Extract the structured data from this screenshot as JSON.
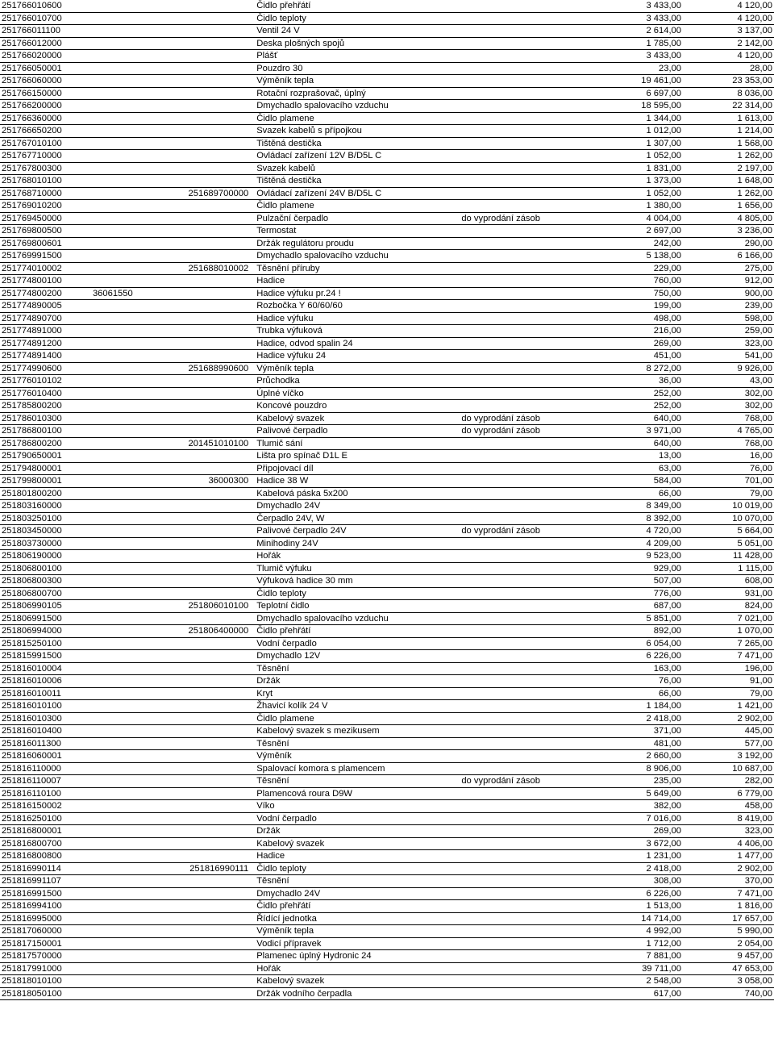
{
  "rows": [
    {
      "c1": "251766010600",
      "c2": "",
      "c3": "",
      "c4": "Čidlo přehřátí",
      "c5": "",
      "c6": "3 433,00",
      "c7": "4 120,00"
    },
    {
      "c1": "251766010700",
      "c2": "",
      "c3": "",
      "c4": "Čidlo teploty",
      "c5": "",
      "c6": "3 433,00",
      "c7": "4 120,00"
    },
    {
      "c1": "251766011100",
      "c2": "",
      "c3": "",
      "c4": "Ventil 24 V",
      "c5": "",
      "c6": "2 614,00",
      "c7": "3 137,00"
    },
    {
      "c1": "251766012000",
      "c2": "",
      "c3": "",
      "c4": "Deska plošných spojů",
      "c5": "",
      "c6": "1 785,00",
      "c7": "2 142,00"
    },
    {
      "c1": "251766020000",
      "c2": "",
      "c3": "",
      "c4": "Plášť",
      "c5": "",
      "c6": "3 433,00",
      "c7": "4 120,00"
    },
    {
      "c1": "251766050001",
      "c2": "",
      "c3": "",
      "c4": "Pouzdro 30",
      "c5": "",
      "c6": "23,00",
      "c7": "28,00"
    },
    {
      "c1": "251766060000",
      "c2": "",
      "c3": "",
      "c4": "Výměník tepla",
      "c5": "",
      "c6": "19 461,00",
      "c7": "23 353,00"
    },
    {
      "c1": "251766150000",
      "c2": "",
      "c3": "",
      "c4": "Rotační rozprašovač, úplný",
      "c5": "",
      "c6": "6 697,00",
      "c7": "8 036,00"
    },
    {
      "c1": "251766200000",
      "c2": "",
      "c3": "",
      "c4": "Dmychadlo spalovacího vzduchu",
      "c5": "",
      "c6": "18 595,00",
      "c7": "22 314,00"
    },
    {
      "c1": "251766360000",
      "c2": "",
      "c3": "",
      "c4": "Čidlo plamene",
      "c5": "",
      "c6": "1 344,00",
      "c7": "1 613,00"
    },
    {
      "c1": "251766650200",
      "c2": "",
      "c3": "",
      "c4": "Svazek kabelů s přípojkou",
      "c5": "",
      "c6": "1 012,00",
      "c7": "1 214,00"
    },
    {
      "c1": "251767010100",
      "c2": "",
      "c3": "",
      "c4": "Tištěná destička",
      "c5": "",
      "c6": "1 307,00",
      "c7": "1 568,00"
    },
    {
      "c1": "251767710000",
      "c2": "",
      "c3": "",
      "c4": "Ovládací zařízení 12V B/D5L C",
      "c5": "",
      "c6": "1 052,00",
      "c7": "1 262,00"
    },
    {
      "c1": "251767800300",
      "c2": "",
      "c3": "",
      "c4": "Svazek kabelů",
      "c5": "",
      "c6": "1 831,00",
      "c7": "2 197,00"
    },
    {
      "c1": "251768010100",
      "c2": "",
      "c3": "",
      "c4": "Tištěná destička",
      "c5": "",
      "c6": "1 373,00",
      "c7": "1 648,00"
    },
    {
      "c1": "251768710000",
      "c2": "",
      "c3": "251689700000",
      "c4": "Ovládací zařízení 24V B/D5L C",
      "c5": "",
      "c6": "1 052,00",
      "c7": "1 262,00"
    },
    {
      "c1": "251769010200",
      "c2": "",
      "c3": "",
      "c4": "Čidlo plamene",
      "c5": "",
      "c6": "1 380,00",
      "c7": "1 656,00"
    },
    {
      "c1": "251769450000",
      "c2": "",
      "c3": "",
      "c4": "Pulzační čerpadlo",
      "c5": "do vyprodání zásob",
      "c6": "4 004,00",
      "c7": "4 805,00"
    },
    {
      "c1": "251769800500",
      "c2": "",
      "c3": "",
      "c4": "Termostat",
      "c5": "",
      "c6": "2 697,00",
      "c7": "3 236,00"
    },
    {
      "c1": "251769800601",
      "c2": "",
      "c3": "",
      "c4": "Držák regulátoru proudu",
      "c5": "",
      "c6": "242,00",
      "c7": "290,00"
    },
    {
      "c1": "251769991500",
      "c2": "",
      "c3": "",
      "c4": "Dmychadlo spalovacího vzduchu",
      "c5": "",
      "c6": "5 138,00",
      "c7": "6 166,00"
    },
    {
      "c1": "251774010002",
      "c2": "",
      "c3": "251688010002",
      "c4": "Těsnění příruby",
      "c5": "",
      "c6": "229,00",
      "c7": "275,00"
    },
    {
      "c1": "251774800100",
      "c2": "",
      "c3": "",
      "c4": "Hadice",
      "c5": "",
      "c6": "760,00",
      "c7": "912,00"
    },
    {
      "c1": "251774800200",
      "c2": "36061550",
      "c3": "",
      "c4": "Hadice výfuku pr.24      !",
      "c5": "",
      "c6": "750,00",
      "c7": "900,00"
    },
    {
      "c1": "251774890005",
      "c2": "",
      "c3": "",
      "c4": "Rozbočka Y 60/60/60",
      "c5": "",
      "c6": "199,00",
      "c7": "239,00"
    },
    {
      "c1": "251774890700",
      "c2": "",
      "c3": "",
      "c4": "Hadice výfuku",
      "c5": "",
      "c6": "498,00",
      "c7": "598,00"
    },
    {
      "c1": "251774891000",
      "c2": "",
      "c3": "",
      "c4": "Trubka výfuková",
      "c5": "",
      "c6": "216,00",
      "c7": "259,00"
    },
    {
      "c1": "251774891200",
      "c2": "",
      "c3": "",
      "c4": "Hadice, odvod spalin 24",
      "c5": "",
      "c6": "269,00",
      "c7": "323,00"
    },
    {
      "c1": "251774891400",
      "c2": "",
      "c3": "",
      "c4": "Hadice výfuku 24",
      "c5": "",
      "c6": "451,00",
      "c7": "541,00"
    },
    {
      "c1": "251774990600",
      "c2": "",
      "c3": "251688990600",
      "c4": "Výměník tepla",
      "c5": "",
      "c6": "8 272,00",
      "c7": "9 926,00"
    },
    {
      "c1": "251776010102",
      "c2": "",
      "c3": "",
      "c4": "Průchodka",
      "c5": "",
      "c6": "36,00",
      "c7": "43,00"
    },
    {
      "c1": "251776010400",
      "c2": "",
      "c3": "",
      "c4": "Úplné víčko",
      "c5": "",
      "c6": "252,00",
      "c7": "302,00"
    },
    {
      "c1": "251785800200",
      "c2": "",
      "c3": "",
      "c4": "Koncové pouzdro",
      "c5": "",
      "c6": "252,00",
      "c7": "302,00"
    },
    {
      "c1": "251786010300",
      "c2": "",
      "c3": "",
      "c4": "Kabelový svazek",
      "c5": "do vyprodání zásob",
      "c6": "640,00",
      "c7": "768,00"
    },
    {
      "c1": "251786800100",
      "c2": "",
      "c3": "",
      "c4": "Palivové čerpadlo",
      "c5": "do vyprodání zásob",
      "c6": "3 971,00",
      "c7": "4 765,00"
    },
    {
      "c1": "251786800200",
      "c2": "",
      "c3": "201451010100",
      "c4": "Tlumič sání",
      "c5": "",
      "c6": "640,00",
      "c7": "768,00"
    },
    {
      "c1": "251790650001",
      "c2": "",
      "c3": "",
      "c4": "Lišta pro spínač D1L E",
      "c5": "",
      "c6": "13,00",
      "c7": "16,00"
    },
    {
      "c1": "251794800001",
      "c2": "",
      "c3": "",
      "c4": "Připojovací díl",
      "c5": "",
      "c6": "63,00",
      "c7": "76,00"
    },
    {
      "c1": "251799800001",
      "c2": "",
      "c3": "36000300",
      "c4": "Hadice 38 W",
      "c5": "",
      "c6": "584,00",
      "c7": "701,00"
    },
    {
      "c1": "251801800200",
      "c2": "",
      "c3": "",
      "c4": "Kabelová páska 5x200",
      "c5": "",
      "c6": "66,00",
      "c7": "79,00"
    },
    {
      "c1": "251803160000",
      "c2": "",
      "c3": "",
      "c4": "Dmychadlo 24V",
      "c5": "",
      "c6": "8 349,00",
      "c7": "10 019,00"
    },
    {
      "c1": "251803250100",
      "c2": "",
      "c3": "",
      "c4": "Čerpadlo 24V, W",
      "c5": "",
      "c6": "8 392,00",
      "c7": "10 070,00"
    },
    {
      "c1": "251803450000",
      "c2": "",
      "c3": "",
      "c4": "Palivové čerpadlo 24V",
      "c5": "do vyprodání zásob",
      "c6": "4 720,00",
      "c7": "5 664,00"
    },
    {
      "c1": "251803730000",
      "c2": "",
      "c3": "",
      "c4": "Minihodiny 24V",
      "c5": "",
      "c6": "4 209,00",
      "c7": "5 051,00"
    },
    {
      "c1": "251806190000",
      "c2": "",
      "c3": "",
      "c4": "Hořák",
      "c5": "",
      "c6": "9 523,00",
      "c7": "11 428,00"
    },
    {
      "c1": "251806800100",
      "c2": "",
      "c3": "",
      "c4": "Tlumič výfuku",
      "c5": "",
      "c6": "929,00",
      "c7": "1 115,00"
    },
    {
      "c1": "251806800300",
      "c2": "",
      "c3": "",
      "c4": "Výfuková hadice 30 mm",
      "c5": "",
      "c6": "507,00",
      "c7": "608,00"
    },
    {
      "c1": "251806800700",
      "c2": "",
      "c3": "",
      "c4": "Čidlo teploty",
      "c5": "",
      "c6": "776,00",
      "c7": "931,00"
    },
    {
      "c1": "251806990105",
      "c2": "",
      "c3": "251806010100",
      "c4": "Teplotní čidlo",
      "c5": "",
      "c6": "687,00",
      "c7": "824,00"
    },
    {
      "c1": "251806991500",
      "c2": "",
      "c3": "",
      "c4": "Dmychadlo spalovacího vzduchu",
      "c5": "",
      "c6": "5 851,00",
      "c7": "7 021,00"
    },
    {
      "c1": "251806994000",
      "c2": "",
      "c3": "251806400000",
      "c4": "Čidlo přehřátí",
      "c5": "",
      "c6": "892,00",
      "c7": "1 070,00"
    },
    {
      "c1": "251815250100",
      "c2": "",
      "c3": "",
      "c4": "Vodní čerpadlo",
      "c5": "",
      "c6": "6 054,00",
      "c7": "7 265,00"
    },
    {
      "c1": "251815991500",
      "c2": "",
      "c3": "",
      "c4": "Dmychadlo 12V",
      "c5": "",
      "c6": "6 226,00",
      "c7": "7 471,00"
    },
    {
      "c1": "251816010004",
      "c2": "",
      "c3": "",
      "c4": "Těsnění",
      "c5": "",
      "c6": "163,00",
      "c7": "196,00"
    },
    {
      "c1": "251816010006",
      "c2": "",
      "c3": "",
      "c4": "Držák",
      "c5": "",
      "c6": "76,00",
      "c7": "91,00"
    },
    {
      "c1": "251816010011",
      "c2": "",
      "c3": "",
      "c4": "Kryt",
      "c5": "",
      "c6": "66,00",
      "c7": "79,00"
    },
    {
      "c1": "251816010100",
      "c2": "",
      "c3": "",
      "c4": "Žhavicí kolík 24 V",
      "c5": "",
      "c6": "1 184,00",
      "c7": "1 421,00"
    },
    {
      "c1": "251816010300",
      "c2": "",
      "c3": "",
      "c4": "Čidlo plamene",
      "c5": "",
      "c6": "2 418,00",
      "c7": "2 902,00"
    },
    {
      "c1": "251816010400",
      "c2": "",
      "c3": "",
      "c4": "Kabelový svazek s mezikusem",
      "c5": "",
      "c6": "371,00",
      "c7": "445,00"
    },
    {
      "c1": "251816011300",
      "c2": "",
      "c3": "",
      "c4": "Těsnění",
      "c5": "",
      "c6": "481,00",
      "c7": "577,00"
    },
    {
      "c1": "251816060001",
      "c2": "",
      "c3": "",
      "c4": "Výměník",
      "c5": "",
      "c6": "2 660,00",
      "c7": "3 192,00"
    },
    {
      "c1": "251816110000",
      "c2": "",
      "c3": "",
      "c4": "Spalovací komora s plamencem",
      "c5": "",
      "c6": "8 906,00",
      "c7": "10 687,00"
    },
    {
      "c1": "251816110007",
      "c2": "",
      "c3": "",
      "c4": "Těsnění",
      "c5": "do vyprodání zásob",
      "c6": "235,00",
      "c7": "282,00"
    },
    {
      "c1": "251816110100",
      "c2": "",
      "c3": "",
      "c4": "Plamencová roura D9W",
      "c5": "",
      "c6": "5 649,00",
      "c7": "6 779,00"
    },
    {
      "c1": "251816150002",
      "c2": "",
      "c3": "",
      "c4": "Víko",
      "c5": "",
      "c6": "382,00",
      "c7": "458,00"
    },
    {
      "c1": "251816250100",
      "c2": "",
      "c3": "",
      "c4": "Vodní čerpadlo",
      "c5": "",
      "c6": "7 016,00",
      "c7": "8 419,00"
    },
    {
      "c1": "251816800001",
      "c2": "",
      "c3": "",
      "c4": "Držák",
      "c5": "",
      "c6": "269,00",
      "c7": "323,00"
    },
    {
      "c1": "251816800700",
      "c2": "",
      "c3": "",
      "c4": "Kabelový svazek",
      "c5": "",
      "c6": "3 672,00",
      "c7": "4 406,00"
    },
    {
      "c1": "251816800800",
      "c2": "",
      "c3": "",
      "c4": "Hadice",
      "c5": "",
      "c6": "1 231,00",
      "c7": "1 477,00"
    },
    {
      "c1": "251816990114",
      "c2": "",
      "c3": "251816990111",
      "c4": "Čidlo teploty",
      "c5": "",
      "c6": "2 418,00",
      "c7": "2 902,00"
    },
    {
      "c1": "251816991107",
      "c2": "",
      "c3": "",
      "c4": "Těsnění",
      "c5": "",
      "c6": "308,00",
      "c7": "370,00"
    },
    {
      "c1": "251816991500",
      "c2": "",
      "c3": "",
      "c4": "Dmychadlo 24V",
      "c5": "",
      "c6": "6 226,00",
      "c7": "7 471,00"
    },
    {
      "c1": "251816994100",
      "c2": "",
      "c3": "",
      "c4": "Čidlo přehřátí",
      "c5": "",
      "c6": "1 513,00",
      "c7": "1 816,00"
    },
    {
      "c1": "251816995000",
      "c2": "",
      "c3": "",
      "c4": "Řídící jednotka",
      "c5": "",
      "c6": "14 714,00",
      "c7": "17 657,00"
    },
    {
      "c1": "251817060000",
      "c2": "",
      "c3": "",
      "c4": "Výměník tepla",
      "c5": "",
      "c6": "4 992,00",
      "c7": "5 990,00"
    },
    {
      "c1": "251817150001",
      "c2": "",
      "c3": "",
      "c4": "Vodicí přípravek",
      "c5": "",
      "c6": "1 712,00",
      "c7": "2 054,00"
    },
    {
      "c1": "251817570000",
      "c2": "",
      "c3": "",
      "c4": "Plamenec úplný Hydronic 24",
      "c5": "",
      "c6": "7 881,00",
      "c7": "9 457,00"
    },
    {
      "c1": "251817991000",
      "c2": "",
      "c3": "",
      "c4": "Hořák",
      "c5": "",
      "c6": "39 711,00",
      "c7": "47 653,00"
    },
    {
      "c1": "251818010100",
      "c2": "",
      "c3": "",
      "c4": "Kabelový svazek",
      "c5": "",
      "c6": "2 548,00",
      "c7": "3 058,00"
    },
    {
      "c1": "251818050100",
      "c2": "",
      "c3": "",
      "c4": "Držák vodního čerpadla",
      "c5": "",
      "c6": "617,00",
      "c7": "740,00"
    }
  ]
}
